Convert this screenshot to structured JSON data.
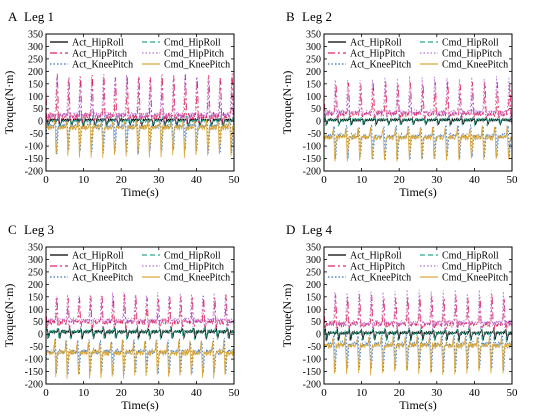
{
  "figure": {
    "panels_order": [
      "A",
      "B",
      "C",
      "D"
    ]
  },
  "chart_data": [
    {
      "type": "line",
      "panel": "A",
      "title": "Leg 1",
      "xlabel": "Time(s)",
      "ylabel": "Torque(N·m)",
      "xlim": [
        0,
        50
      ],
      "ylim": [
        -200,
        350
      ],
      "xticks": [
        0,
        10,
        20,
        30,
        40,
        50
      ],
      "yticks": [
        -200,
        -150,
        -100,
        -50,
        0,
        50,
        100,
        150,
        200,
        250,
        300,
        350
      ],
      "grid": false,
      "legend_position": "top",
      "period_s": 3.1,
      "series": [
        {
          "name": "Act_HipRoll",
          "color": "#000000",
          "dash": "solid",
          "base": 5,
          "peak": 5,
          "trough": -20
        },
        {
          "name": "Cmd_HipRoll",
          "color": "#2aa88c",
          "dash": "dash",
          "base": 0,
          "peak": 25,
          "trough": -30
        },
        {
          "name": "Act_HipPitch",
          "color": "#e0245a",
          "dash": "dashdot",
          "base": 20,
          "peak": 200,
          "trough": -10
        },
        {
          "name": "Cmd_HipPitch",
          "color": "#b66fd6",
          "dash": "dot",
          "base": 25,
          "peak": 185,
          "trough": 0
        },
        {
          "name": "Act_KneePitch",
          "color": "#2e6fc4",
          "dash": "dot",
          "base": -20,
          "peak": 10,
          "trough": -130
        },
        {
          "name": "Cmd_KneePitch",
          "color": "#d9a73a",
          "dash": "solid",
          "base": -25,
          "peak": 5,
          "trough": -140
        }
      ]
    },
    {
      "type": "line",
      "panel": "B",
      "title": "Leg 2",
      "xlabel": "Time(s)",
      "ylabel": "Torque(N·m)",
      "xlim": [
        0,
        50
      ],
      "ylim": [
        -200,
        350
      ],
      "xticks": [
        0,
        10,
        20,
        30,
        40,
        50
      ],
      "yticks": [
        -200,
        -150,
        -100,
        -50,
        0,
        50,
        100,
        150,
        200,
        250,
        300,
        350
      ],
      "grid": false,
      "legend_position": "top",
      "period_s": 3.3,
      "series": [
        {
          "name": "Act_HipRoll",
          "color": "#000000",
          "dash": "solid",
          "base": 5,
          "peak": 10,
          "trough": -15
        },
        {
          "name": "Cmd_HipRoll",
          "color": "#2aa88c",
          "dash": "dash",
          "base": 5,
          "peak": 20,
          "trough": -20
        },
        {
          "name": "Act_HipPitch",
          "color": "#e0245a",
          "dash": "dashdot",
          "base": 30,
          "peak": 165,
          "trough": 10
        },
        {
          "name": "Cmd_HipPitch",
          "color": "#b66fd6",
          "dash": "dot",
          "base": 35,
          "peak": 175,
          "trough": 15
        },
        {
          "name": "Act_KneePitch",
          "color": "#2e6fc4",
          "dash": "dot",
          "base": -60,
          "peak": -10,
          "trough": -150
        },
        {
          "name": "Cmd_KneePitch",
          "color": "#d9a73a",
          "dash": "solid",
          "base": -65,
          "peak": -20,
          "trough": -160
        }
      ]
    },
    {
      "type": "line",
      "panel": "C",
      "title": "Leg 3",
      "xlabel": "Time(s)",
      "ylabel": "Torque(N·m)",
      "xlim": [
        0,
        50
      ],
      "ylim": [
        -200,
        350
      ],
      "xticks": [
        0,
        10,
        20,
        30,
        40,
        50
      ],
      "yticks": [
        -200,
        -150,
        -100,
        -50,
        0,
        50,
        100,
        150,
        200,
        250,
        300,
        350
      ],
      "grid": false,
      "legend_position": "top",
      "period_s": 3.0,
      "series": [
        {
          "name": "Act_HipRoll",
          "color": "#000000",
          "dash": "solid",
          "base": 10,
          "peak": 25,
          "trough": -20
        },
        {
          "name": "Cmd_HipRoll",
          "color": "#2aa88c",
          "dash": "dash",
          "base": 10,
          "peak": 30,
          "trough": -25
        },
        {
          "name": "Act_HipPitch",
          "color": "#e0245a",
          "dash": "dashdot",
          "base": 50,
          "peak": 165,
          "trough": 20
        },
        {
          "name": "Cmd_HipPitch",
          "color": "#b66fd6",
          "dash": "dot",
          "base": 55,
          "peak": 170,
          "trough": 25
        },
        {
          "name": "Act_KneePitch",
          "color": "#2e6fc4",
          "dash": "dot",
          "base": -70,
          "peak": -20,
          "trough": -170
        },
        {
          "name": "Cmd_KneePitch",
          "color": "#d9a73a",
          "dash": "solid",
          "base": -75,
          "peak": -25,
          "trough": -175
        }
      ]
    },
    {
      "type": "line",
      "panel": "D",
      "title": "Leg 4",
      "xlabel": "Time(s)",
      "ylabel": "Torque(N·m)",
      "xlim": [
        0,
        50
      ],
      "ylim": [
        -200,
        350
      ],
      "xticks": [
        0,
        10,
        20,
        30,
        40,
        50
      ],
      "yticks": [
        -200,
        -150,
        -100,
        -50,
        0,
        50,
        100,
        150,
        200,
        250,
        300,
        350
      ],
      "grid": false,
      "legend_position": "top",
      "period_s": 3.2,
      "series": [
        {
          "name": "Act_HipRoll",
          "color": "#000000",
          "dash": "solid",
          "base": 5,
          "peak": 20,
          "trough": -25
        },
        {
          "name": "Cmd_HipRoll",
          "color": "#2aa88c",
          "dash": "dash",
          "base": 5,
          "peak": 25,
          "trough": -30
        },
        {
          "name": "Act_HipPitch",
          "color": "#e0245a",
          "dash": "dashdot",
          "base": 40,
          "peak": 165,
          "trough": 15
        },
        {
          "name": "Cmd_HipPitch",
          "color": "#b66fd6",
          "dash": "dot",
          "base": 45,
          "peak": 175,
          "trough": 20
        },
        {
          "name": "Act_KneePitch",
          "color": "#2e6fc4",
          "dash": "dot",
          "base": -40,
          "peak": 0,
          "trough": -150
        },
        {
          "name": "Cmd_KneePitch",
          "color": "#d9a73a",
          "dash": "solid",
          "base": -45,
          "peak": -5,
          "trough": -160
        }
      ]
    }
  ]
}
